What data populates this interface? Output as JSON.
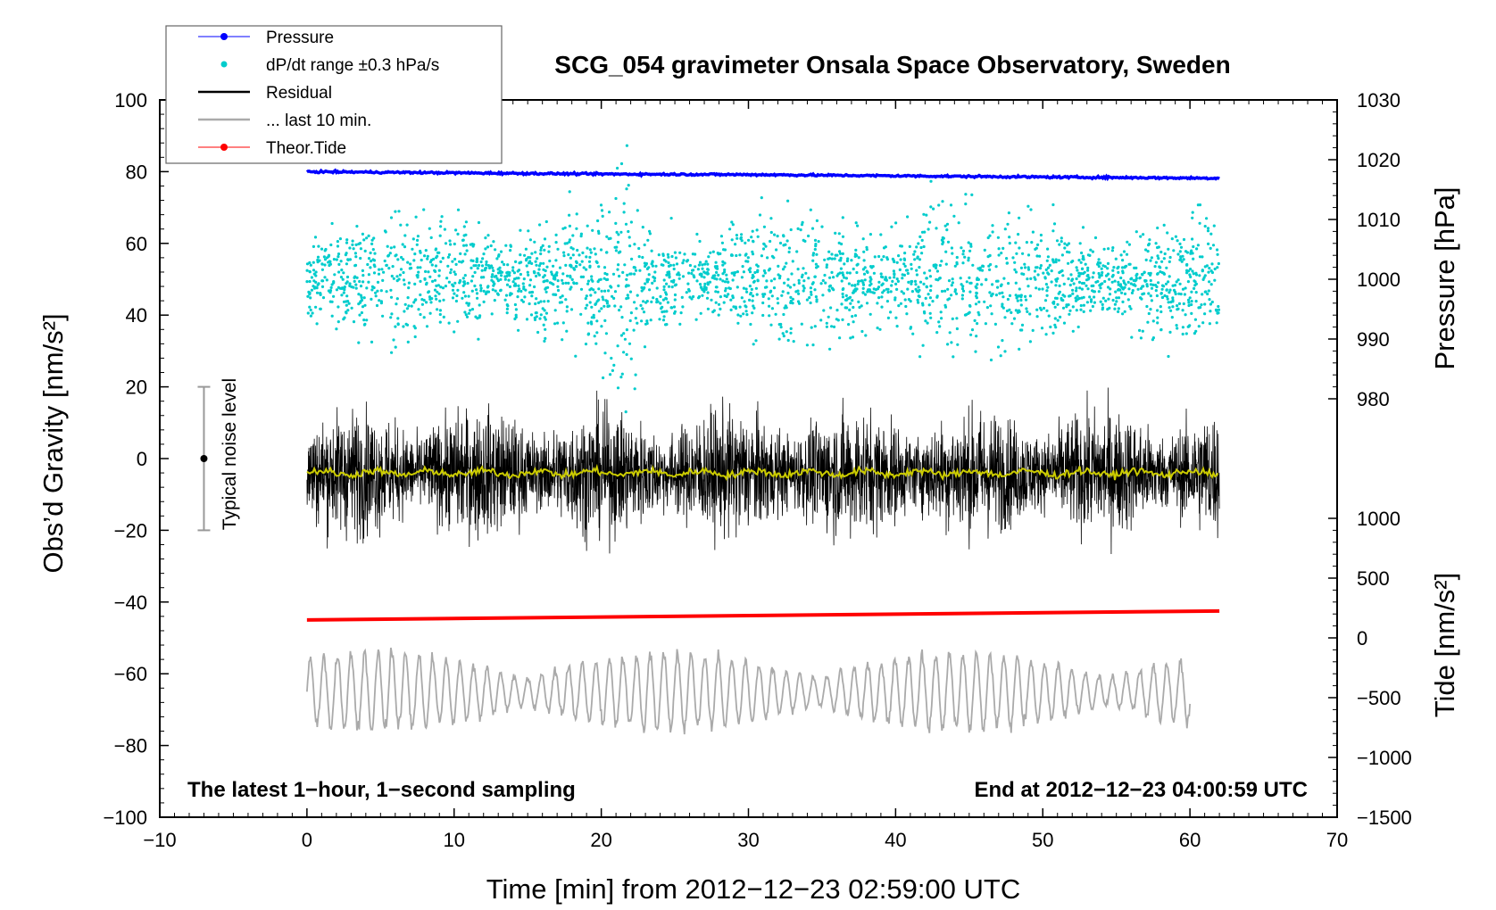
{
  "chart_data": {
    "type": "line",
    "title": "SCG_054 gravimeter Onsala Space Observatory, Sweden",
    "xlabel": "Time [min] from 2012−12−23 02:59:00 UTC",
    "ylabel_left": "Obs’d Gravity [nm/s²]",
    "ylabel_pressure": "Pressure [hPa]",
    "ylabel_tide": "Tide [nm/s²]",
    "xlim": [
      -10,
      70
    ],
    "ylim": [
      -100,
      100
    ],
    "pressure_lim": [
      980,
      1030
    ],
    "tide_lim": [
      -1500,
      1000
    ],
    "x_ticks": [
      "−10",
      "0",
      "10",
      "20",
      "30",
      "40",
      "50",
      "60",
      "70"
    ],
    "y_ticks": [
      "100",
      "80",
      "60",
      "40",
      "20",
      "0",
      "−20",
      "−40",
      "−60",
      "−80",
      "−100"
    ],
    "pressure_ticks": [
      "1030",
      "1020",
      "1010",
      "1000",
      "990",
      "980"
    ],
    "tide_ticks": [
      "1000",
      "500",
      "0",
      "−500",
      "−1000",
      "−1500"
    ],
    "legend": [
      {
        "label": "Pressure",
        "color": "#0000ff",
        "style": "line-dot"
      },
      {
        "label": "dP/dt range ±0.3 hPa/s",
        "color": "#00cccc",
        "style": "dot"
      },
      {
        "label": "Residual",
        "color": "#000000",
        "style": "line"
      },
      {
        "label": "... last 10 min.",
        "color": "#aaaaaa",
        "style": "line"
      },
      {
        "label": "Theor.Tide",
        "color": "#ff0000",
        "style": "line-dot"
      }
    ],
    "annotation_left": "The latest 1−hour, 1−second sampling",
    "annotation_right": "End at 2012−12−23 04:00:59 UTC",
    "noise_label": "Typical noise level",
    "noise_bar": {
      "x": -7,
      "center": 0,
      "low": -20,
      "high": 20
    },
    "series": [
      {
        "name": "Pressure",
        "axis": "pressure",
        "color": "#0000ff",
        "x": [
          0,
          10,
          20,
          30,
          40,
          50,
          62
        ],
        "y": [
          1018.0,
          1017.8,
          1017.6,
          1017.5,
          1017.3,
          1017.1,
          1016.9
        ]
      },
      {
        "name": "dP/dt range ±0.3 hPa/s",
        "axis": "pressure",
        "color": "#00cccc",
        "x_range": [
          0,
          62
        ],
        "center": 1000,
        "spread": 10
      },
      {
        "name": "Residual",
        "axis": "gravity",
        "color": "#000000",
        "x_range": [
          0,
          62
        ],
        "center": -4,
        "spread": 20
      },
      {
        "name": "Residual smoothed",
        "axis": "gravity",
        "color": "#cccc00",
        "x_range": [
          0,
          62
        ],
        "center": -4
      },
      {
        "name": "... last 10 min.",
        "axis": "tide",
        "color": "#aaaaaa",
        "x_range": [
          0,
          60
        ],
        "center": -450,
        "amplitude": 400
      },
      {
        "name": "Theor.Tide",
        "axis": "tide",
        "color": "#ff0000",
        "x": [
          0,
          62
        ],
        "y": [
          150,
          225
        ]
      }
    ]
  }
}
